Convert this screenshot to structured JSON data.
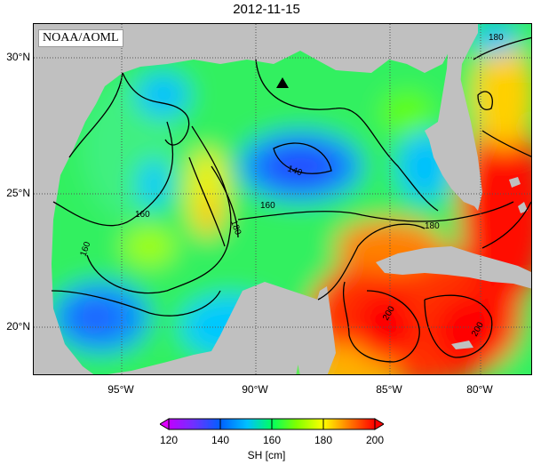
{
  "title": "2012-11-15",
  "credit": "NOAA/AOML",
  "lat_ticks": [
    {
      "label": "30°N",
      "value": 30
    },
    {
      "label": "25°N",
      "value": 25
    },
    {
      "label": "20°N",
      "value": 20
    }
  ],
  "lon_ticks": [
    {
      "label": "95°W",
      "value": -95
    },
    {
      "label": "90°W",
      "value": -90
    },
    {
      "label": "85°W",
      "value": -85
    },
    {
      "label": "80°W",
      "value": -80
    }
  ],
  "extent": {
    "lon_min": -98.5,
    "lon_max": -78,
    "lat_min": 18,
    "lat_max": 31
  },
  "contour_labels": [
    "180",
    "140",
    "160",
    "180",
    "160",
    "180",
    "160",
    "200",
    "200",
    "180"
  ],
  "colorbar": {
    "label": "SH [cm]",
    "ticks": [
      "120",
      "140",
      "160",
      "180",
      "200"
    ],
    "colors": [
      "#c000ff",
      "#6060ff",
      "#0070ff",
      "#00c0ff",
      "#00e0a0",
      "#00ff40",
      "#60ff00",
      "#c0ff00",
      "#ffff00",
      "#ffc000",
      "#ff8000",
      "#ff3000",
      "#ff0000"
    ],
    "under_color": "#e000ff",
    "over_color": "#ff0000"
  },
  "colors": {
    "land": "#c0c0c0",
    "grid": "#555555"
  },
  "marker": {
    "icon": "triangle-marker-icon"
  }
}
